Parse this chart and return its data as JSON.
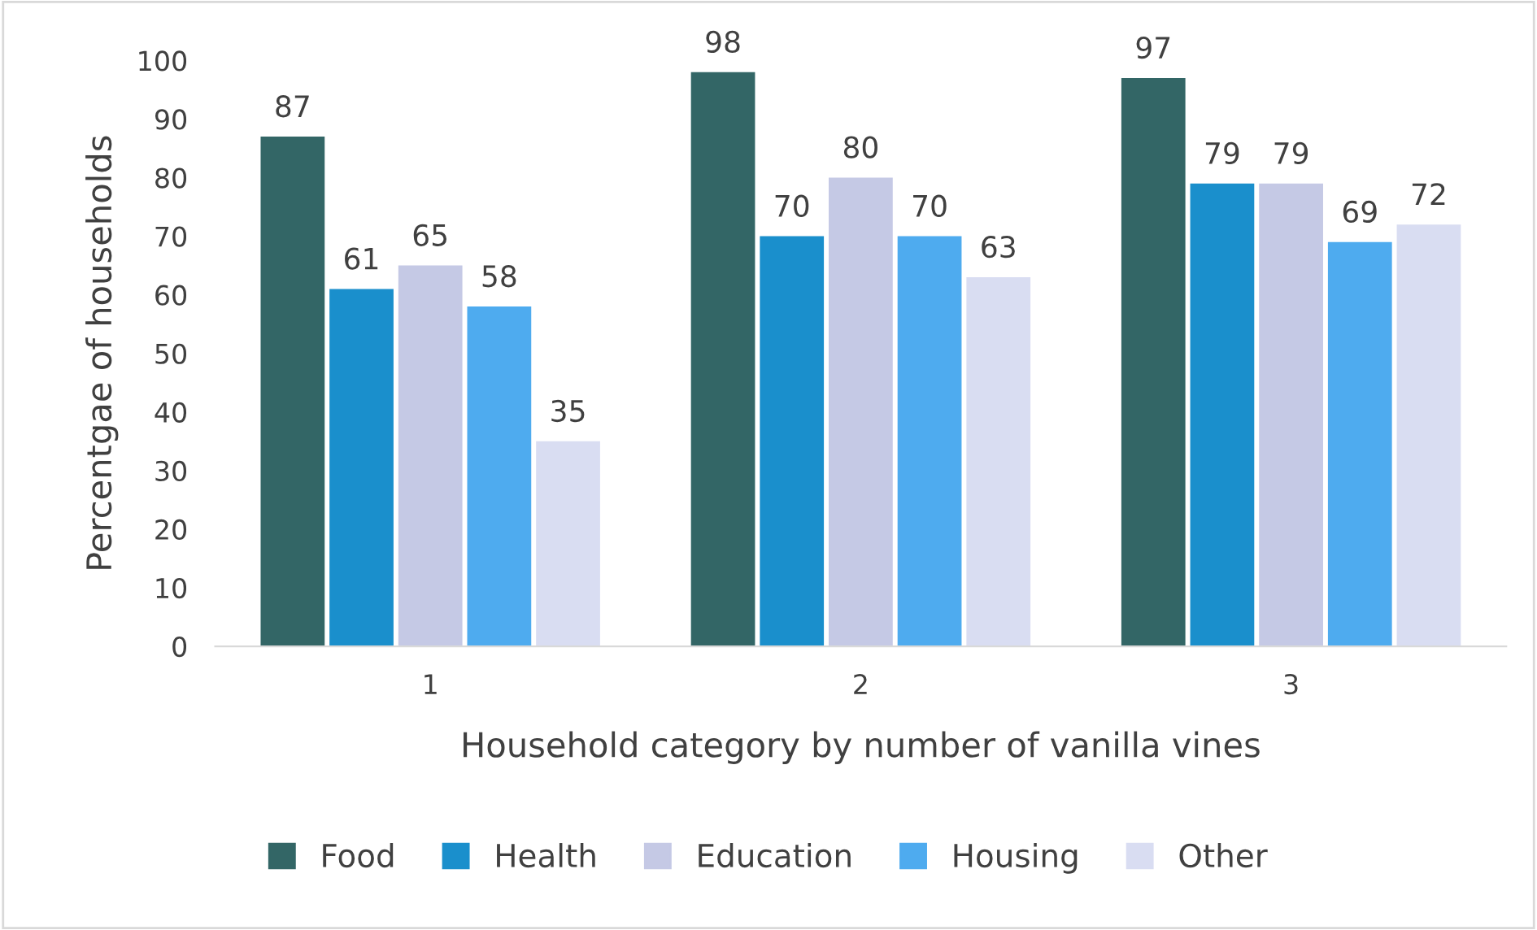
{
  "chart_data": {
    "type": "bar",
    "xlabel": "Household category by number of vanilla vines",
    "ylabel": "Percentgae of households",
    "categories": [
      "1",
      "2",
      "3"
    ],
    "series": [
      {
        "name": "Food",
        "color": "#336666",
        "values": [
          87,
          98,
          97
        ]
      },
      {
        "name": "Health",
        "color": "#1a8fcc",
        "values": [
          61,
          70,
          79
        ]
      },
      {
        "name": "Education",
        "color": "#c5c9e5",
        "values": [
          65,
          80,
          79
        ]
      },
      {
        "name": "Housing",
        "color": "#4eabef",
        "values": [
          58,
          70,
          69
        ]
      },
      {
        "name": "Other",
        "color": "#d9ddf2",
        "values": [
          35,
          63,
          72
        ]
      }
    ],
    "ylim": [
      0,
      100
    ],
    "yticks": [
      0,
      10,
      20,
      30,
      40,
      50,
      60,
      70,
      80,
      90,
      100
    ],
    "data_labels": true,
    "grid": false,
    "legend": "bottom"
  }
}
